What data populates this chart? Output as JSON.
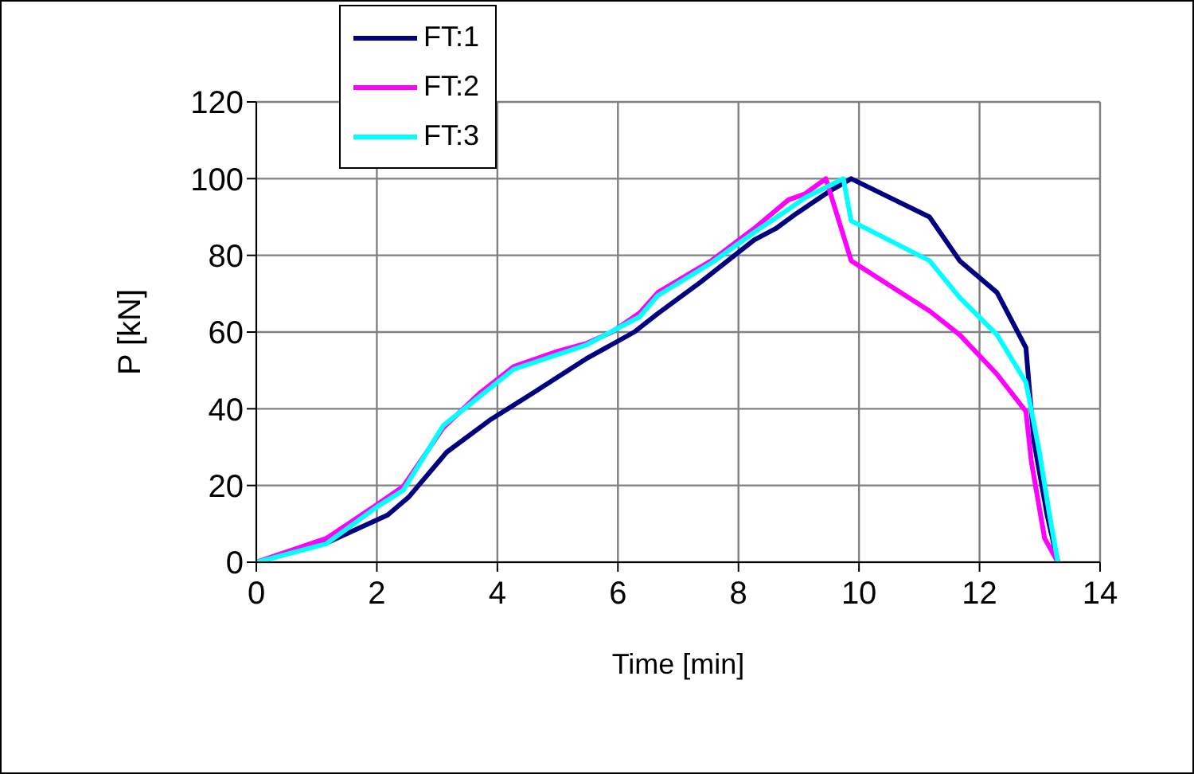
{
  "chart_data": {
    "type": "line",
    "xlabel": "Time [min]",
    "ylabel": "P  [kN]",
    "xlim": [
      0,
      14
    ],
    "xticks": [
      0,
      2,
      4,
      6,
      8,
      10,
      12,
      14
    ],
    "ylim": [
      0,
      120
    ],
    "yticks": [
      0,
      20,
      40,
      60,
      80,
      100,
      120
    ],
    "grid": true,
    "legend": "top left",
    "marker": "none",
    "line_style": "solid",
    "series": [
      {
        "name": "FT:1",
        "color": "#000080",
        "x": [
          0,
          1.16,
          2.18,
          2.53,
          3.16,
          3.87,
          4.58,
          5.47,
          6.27,
          6.66,
          7.37,
          8.26,
          8.62,
          8.97,
          9.5,
          9.87,
          11.17,
          11.67,
          12.29,
          12.77,
          12.9,
          13.12,
          13.3
        ],
        "values": [
          0,
          5,
          12.3,
          17,
          28.7,
          37,
          44,
          53,
          60,
          64.8,
          73,
          84,
          87,
          91,
          96.6,
          100,
          90,
          78.6,
          70.3,
          55.9,
          31.7,
          12.4,
          0
        ]
      },
      {
        "name": "FT:2",
        "color": "#ff00ff",
        "x": [
          0,
          1.16,
          2,
          2.44,
          3.1,
          3.7,
          4.27,
          5,
          5.47,
          5.9,
          6.36,
          6.66,
          7.55,
          8.26,
          8.83,
          9.1,
          9.45,
          9.87,
          11.17,
          11.67,
          12.29,
          12.77,
          12.86,
          13.08,
          13.3
        ],
        "values": [
          0,
          6.2,
          15,
          19.8,
          35,
          44,
          51,
          55,
          57,
          60,
          65,
          70.3,
          78.6,
          87,
          94.5,
          96,
          100,
          78.6,
          65.5,
          59.3,
          49,
          39.3,
          26.2,
          6.2,
          0
        ]
      },
      {
        "name": "FT:3",
        "color": "#00ffff",
        "x": [
          0,
          1.16,
          2,
          2.44,
          3.1,
          4.27,
          5.47,
          6.36,
          6.66,
          7.55,
          8.26,
          8.83,
          9.1,
          9.74,
          9.87,
          11.17,
          11.67,
          12.29,
          12.77,
          12.99,
          13.16,
          13.3
        ],
        "values": [
          0,
          4.8,
          14.4,
          18.8,
          35.6,
          50.3,
          56.6,
          64,
          69.5,
          78,
          86,
          92,
          95,
          100,
          89,
          78.6,
          69,
          59.3,
          46.9,
          29,
          12.4,
          0
        ]
      }
    ]
  }
}
